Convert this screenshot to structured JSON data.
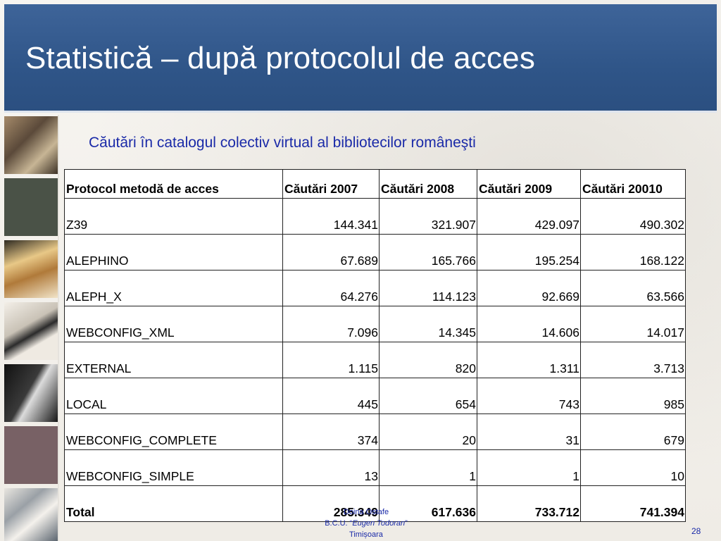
{
  "slide": {
    "title": "Statistică – după protocolul de acces",
    "subtitle": "Căutări în catalogul colectiv virtual al bibliotecilor româneşti",
    "page_number": "28"
  },
  "table": {
    "headers": [
      "Protocol metodă de acces",
      "Căutări 2007",
      "Căutări 2008",
      "Căutări 2009",
      "Căutări 20010"
    ],
    "rows": [
      [
        "Z39",
        "144.341",
        "321.907",
        "429.097",
        "490.302"
      ],
      [
        "ALEPHINO",
        "67.689",
        "165.766",
        "195.254",
        "168.122"
      ],
      [
        "ALEPH_X",
        "64.276",
        "114.123",
        "92.669",
        "63.566"
      ],
      [
        "WEBCONFIG_XML",
        "7.096",
        "14.345",
        "14.606",
        "14.017"
      ],
      [
        "EXTERNAL",
        "1.115",
        "820",
        "1.311",
        "3.713"
      ],
      [
        "LOCAL",
        "445",
        "654",
        "743",
        "985"
      ],
      [
        "WEBCONFIG_COMPLETE",
        "374",
        "20",
        "31",
        "679"
      ],
      [
        "WEBCONFIG_SIMPLE",
        "13",
        "1",
        "1",
        "10"
      ],
      [
        "Total",
        "285.349",
        "617.636",
        "733.712",
        "741.394"
      ]
    ]
  },
  "footer": {
    "author": "Doina Ostafe",
    "institution_prefix": "B.C.U. “",
    "institution_name": "Eugen Todoran",
    "institution_suffix": "”",
    "city": "Timișoara"
  },
  "colors": {
    "title_bar": "#2f5588",
    "subtitle_text": "#1a2aa8"
  }
}
